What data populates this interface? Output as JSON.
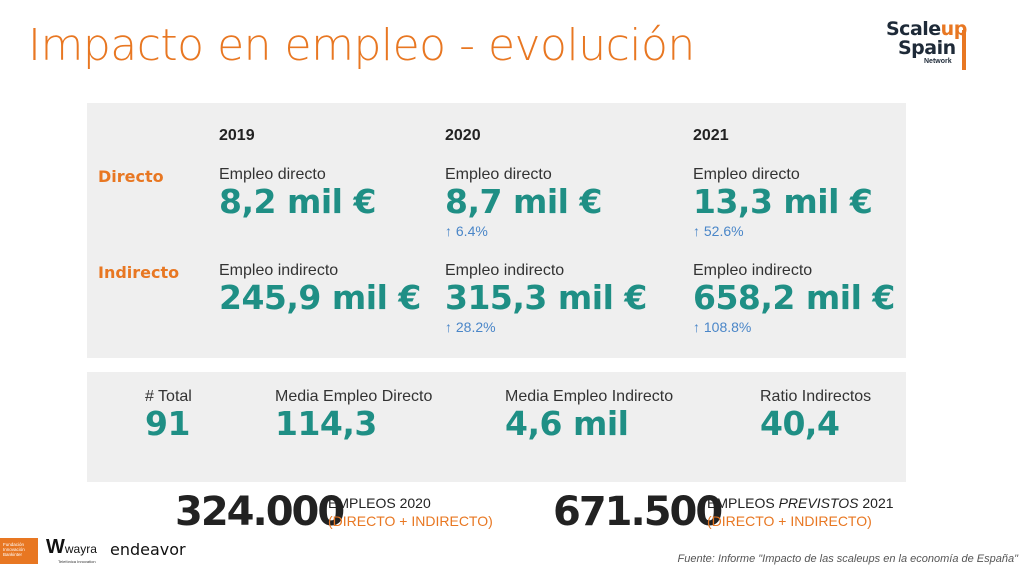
{
  "title": "Impacto en empleo - evolución",
  "logo": {
    "line1a": "Scale",
    "line1b": "up",
    "line2": "Spain",
    "line3": "Network"
  },
  "years": [
    "2019",
    "2020",
    "2021"
  ],
  "rows": [
    {
      "label": "Directo",
      "cells": [
        {
          "label": "Empleo directo",
          "value": "8,2 mil €",
          "change": ""
        },
        {
          "label": "Empleo directo",
          "value": "8,7 mil €",
          "change": "6.4%"
        },
        {
          "label": "Empleo directo",
          "value": "13,3 mil €",
          "change": "52.6%"
        }
      ]
    },
    {
      "label": "Indirecto",
      "cells": [
        {
          "label": "Empleo indirecto",
          "value": "245,9 mil €",
          "change": ""
        },
        {
          "label": "Empleo indirecto",
          "value": "315,3 mil €",
          "change": "28.2%"
        },
        {
          "label": "Empleo indirecto",
          "value": "658,2 mil €",
          "change": "108.8%"
        }
      ]
    }
  ],
  "stats": [
    {
      "label": "# Total",
      "value": "91"
    },
    {
      "label": "Media Empleo Directo",
      "value": "114,3"
    },
    {
      "label": "Media Empleo Indirecto",
      "value": "4,6 mil"
    },
    {
      "label": "Ratio Indirectos",
      "value": "40,4"
    }
  ],
  "totals": [
    {
      "value": "324.000",
      "line1": "EMPLEOS 2020",
      "line1_em": "",
      "line1_end": "",
      "line2": "(DIRECTO + INDIRECTO)"
    },
    {
      "value": "671.500",
      "line1": "EMPLEOS ",
      "line1_em": "PREVISTOS",
      "line1_end": " 2021",
      "line2": "(DIRECTO + INDIRECTO)"
    }
  ],
  "footer_logos": {
    "fundacion": "Fundación Innovación Bankinter",
    "wayra": "wayra",
    "wayra_sub": "Telefónica Innovation",
    "endeavor": "endeavor"
  },
  "source": "Fuente: Informe \"Impacto de las scaleups en la economía de España\"",
  "colors": {
    "accent": "#e87722",
    "teal": "#1f8f85",
    "change": "#4a86c8"
  },
  "icons": {
    "change": "arrow-up-icon"
  }
}
